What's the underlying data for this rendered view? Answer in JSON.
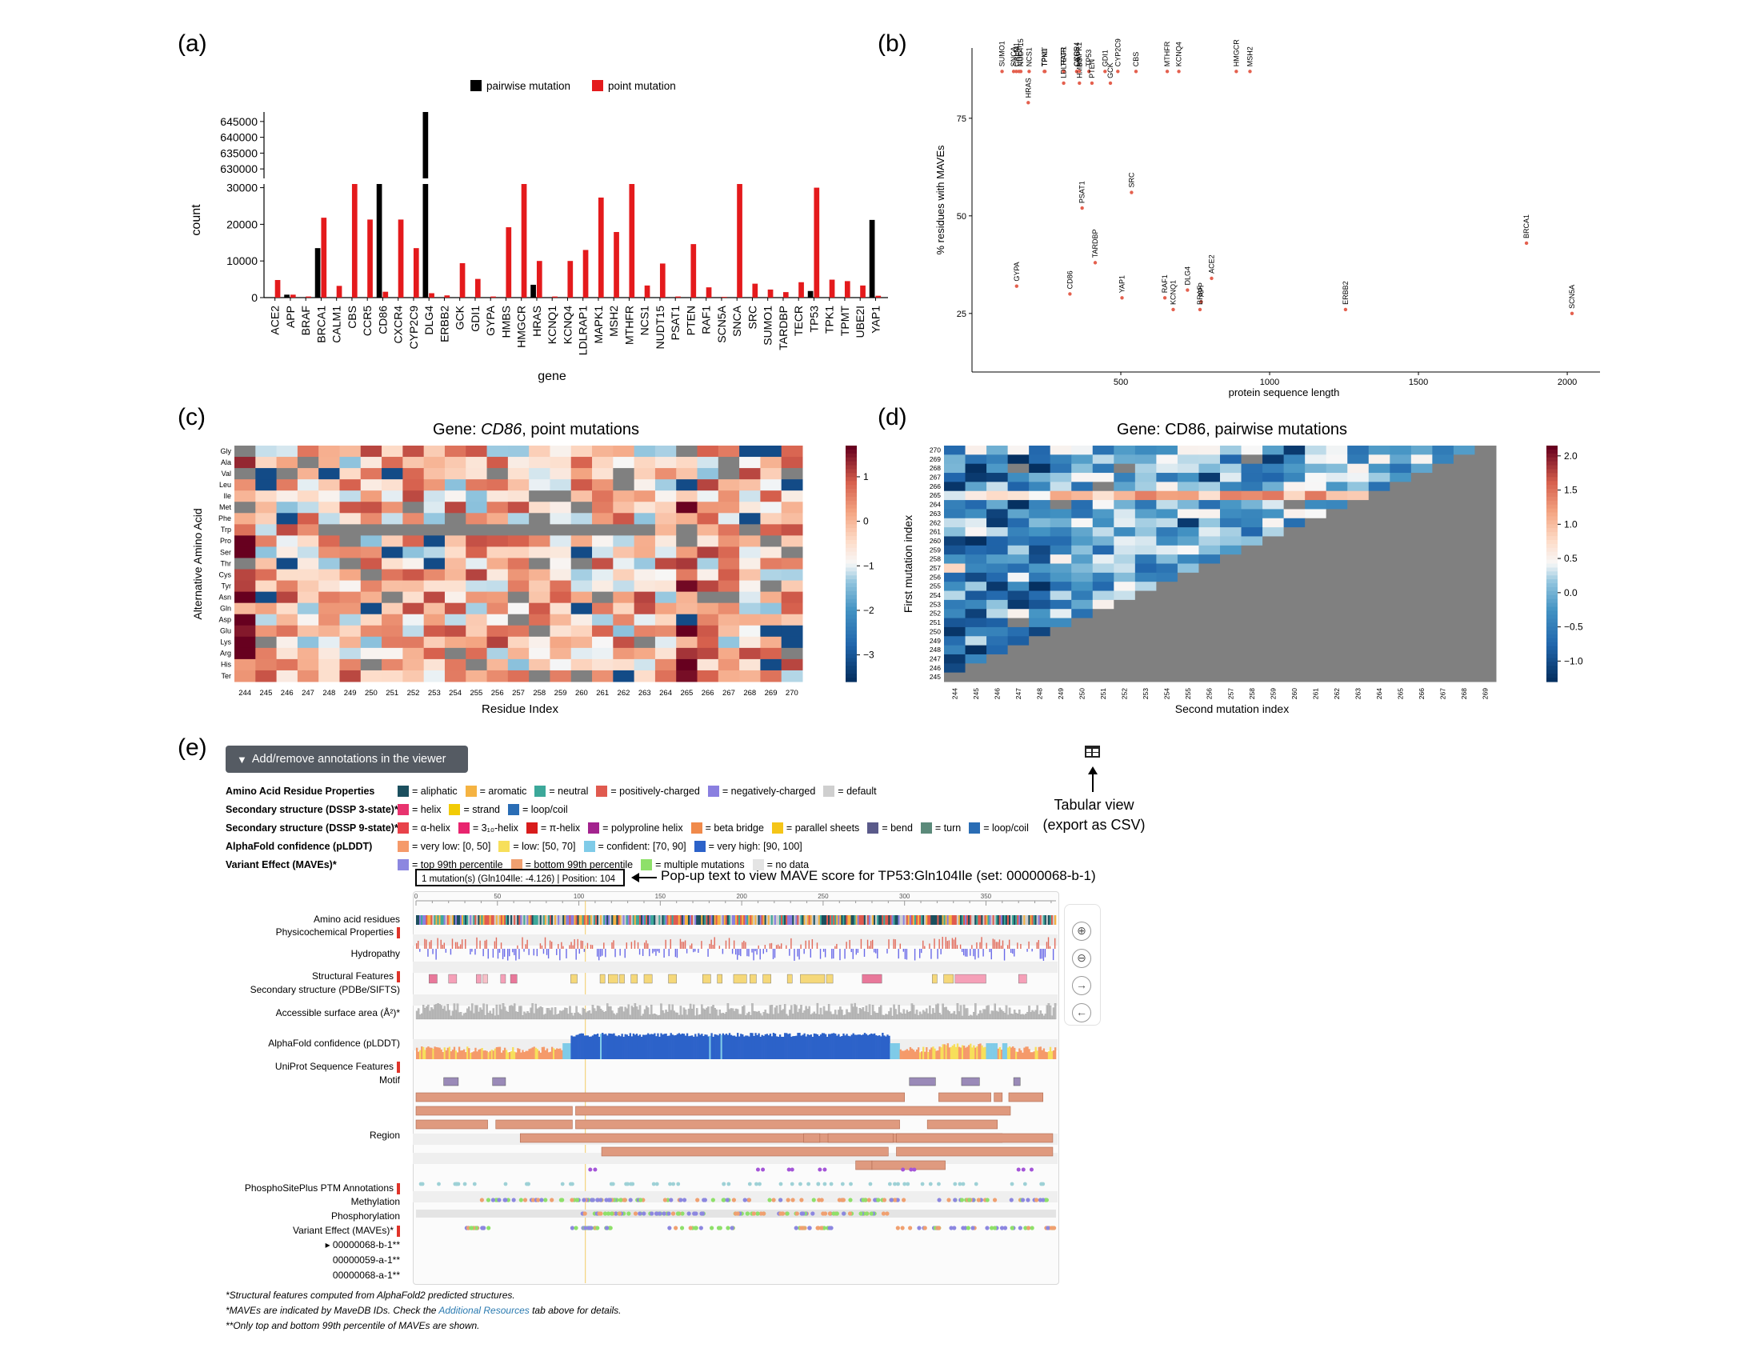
{
  "panels": {
    "a": "(a)",
    "b": "(b)",
    "c": "(c)",
    "d": "(d)",
    "e": "(e)"
  },
  "colors": {
    "pairwise": "#000000",
    "point": "#e41a1c",
    "scatter": "#e4604e",
    "grey": "#808080"
  },
  "chart_data": [
    {
      "id": "a",
      "type": "bar",
      "xlabel": "gene",
      "ylabel": "count",
      "legend": [
        "pairwise mutation",
        "point mutation"
      ],
      "legend_position": "top",
      "categories": [
        "ACE2",
        "APP",
        "BRAF",
        "BRCA1",
        "CALM1",
        "CBS",
        "CCR5",
        "CD86",
        "CXCR4",
        "CYP2C9",
        "DLG4",
        "ERBB2",
        "GCK",
        "GDI1",
        "GYPA",
        "HMBS",
        "HMGCR",
        "HRAS",
        "KCNQ1",
        "KCNQ4",
        "LDLRAP1",
        "MAPK1",
        "MSH2",
        "MTHFR",
        "NCS1",
        "NUDT15",
        "PSAT1",
        "PTEN",
        "RAF1",
        "SCN5A",
        "SNCA",
        "SRC",
        "SUMO1",
        "TARDBP",
        "TECR",
        "TP53",
        "TPK1",
        "TPMT",
        "UBE2I",
        "YAP1"
      ],
      "series": [
        {
          "name": "pairwise mutation",
          "values": [
            0,
            800,
            0,
            13500,
            0,
            0,
            0,
            31000,
            0,
            0,
            648000,
            0,
            0,
            0,
            0,
            0,
            0,
            3500,
            0,
            0,
            0,
            0,
            0,
            0,
            0,
            0,
            0,
            0,
            0,
            0,
            0,
            0,
            0,
            0,
            0,
            1800,
            0,
            0,
            0,
            21200
          ]
        },
        {
          "name": "point mutation",
          "values": [
            4800,
            800,
            300,
            21800,
            3200,
            31000,
            21300,
            1600,
            21300,
            13500,
            1200,
            600,
            9400,
            5100,
            300,
            19200,
            31000,
            10000,
            300,
            10000,
            13000,
            27300,
            17900,
            31000,
            3300,
            9300,
            300,
            14600,
            2800,
            200,
            31000,
            3800,
            2200,
            1500,
            4200,
            30000,
            4900,
            4500,
            3300,
            500
          ]
        }
      ],
      "yticks_lower": [
        "0",
        "10000",
        "20000",
        "30000"
      ],
      "yticks_upper": [
        "630000",
        "635000",
        "640000",
        "645000"
      ]
    },
    {
      "id": "b",
      "type": "scatter",
      "xlabel": "protein sequence length",
      "ylabel": "% residues with MAVEs",
      "xticks": [
        "500",
        "1000",
        "1500",
        "2000"
      ],
      "yticks": [
        "25",
        "50",
        "75"
      ],
      "xlim": [
        0,
        2110
      ],
      "ylim": [
        10,
        93
      ],
      "points": [
        {
          "label": "SUMO1",
          "x": 101,
          "y": 87
        },
        {
          "label": "SNCA",
          "x": 140,
          "y": 87
        },
        {
          "label": "CALM1",
          "x": 149,
          "y": 87
        },
        {
          "label": "UBE2I",
          "x": 158,
          "y": 87
        },
        {
          "label": "NUDT15",
          "x": 164,
          "y": 87
        },
        {
          "label": "HRAS",
          "x": 189,
          "y": 79
        },
        {
          "label": "NCS1",
          "x": 192,
          "y": 87
        },
        {
          "label": "TPK1",
          "x": 243,
          "y": 87
        },
        {
          "label": "TPMT",
          "x": 245,
          "y": 87
        },
        {
          "label": "TECR",
          "x": 308,
          "y": 87
        },
        {
          "label": "LDLRAP1",
          "x": 308,
          "y": 84
        },
        {
          "label": "CXCR4",
          "x": 352,
          "y": 87
        },
        {
          "label": "CCR5",
          "x": 352,
          "y": 87
        },
        {
          "label": "HMBS",
          "x": 361,
          "y": 84
        },
        {
          "label": "MAPK1",
          "x": 360,
          "y": 87
        },
        {
          "label": "TP53",
          "x": 393,
          "y": 87
        },
        {
          "label": "PTEN",
          "x": 403,
          "y": 84
        },
        {
          "label": "GDI1",
          "x": 447,
          "y": 87
        },
        {
          "label": "GCK",
          "x": 465,
          "y": 84
        },
        {
          "label": "CYP2C9",
          "x": 490,
          "y": 87
        },
        {
          "label": "CBS",
          "x": 551,
          "y": 87
        },
        {
          "label": "MTHFR",
          "x": 656,
          "y": 87
        },
        {
          "label": "KCNQ4",
          "x": 695,
          "y": 87
        },
        {
          "label": "HMGCR",
          "x": 888,
          "y": 87
        },
        {
          "label": "MSH2",
          "x": 934,
          "y": 87
        },
        {
          "label": "PSAT1",
          "x": 370,
          "y": 52
        },
        {
          "label": "SRC",
          "x": 536,
          "y": 56
        },
        {
          "label": "TARDBP",
          "x": 414,
          "y": 38
        },
        {
          "label": "GYPA",
          "x": 150,
          "y": 32
        },
        {
          "label": "CD86",
          "x": 329,
          "y": 30
        },
        {
          "label": "YAP1",
          "x": 504,
          "y": 29
        },
        {
          "label": "RAF1",
          "x": 648,
          "y": 29
        },
        {
          "label": "KCNQ1",
          "x": 676,
          "y": 26
        },
        {
          "label": "DLG4",
          "x": 724,
          "y": 31
        },
        {
          "label": "APP",
          "x": 770,
          "y": 28
        },
        {
          "label": "BRAF",
          "x": 766,
          "y": 26
        },
        {
          "label": "ACE2",
          "x": 805,
          "y": 34
        },
        {
          "label": "ERBB2",
          "x": 1255,
          "y": 26
        },
        {
          "label": "BRCA1",
          "x": 1863,
          "y": 43
        },
        {
          "label": "SCN5A",
          "x": 2016,
          "y": 25
        }
      ]
    },
    {
      "id": "c",
      "type": "heatmap",
      "title_prefix": "Gene: ",
      "title_gene": "CD86",
      "title_suffix": ", point mutations",
      "xlabel": "Residue Index",
      "ylabel": "Alternative Amino Acid",
      "x": [
        "244",
        "245",
        "246",
        "247",
        "248",
        "249",
        "250",
        "251",
        "252",
        "253",
        "254",
        "255",
        "256",
        "257",
        "258",
        "259",
        "260",
        "261",
        "262",
        "263",
        "264",
        "265",
        "266",
        "267",
        "268",
        "269",
        "270"
      ],
      "y": [
        "Gly",
        "Ala",
        "Val",
        "Leu",
        "Ile",
        "Met",
        "Phe",
        "Trp",
        "Pro",
        "Ser",
        "Thr",
        "Cys",
        "Tyr",
        "Asn",
        "Gln",
        "Asp",
        "Glu",
        "Lys",
        "Arg",
        "His",
        "Ter"
      ],
      "colorbar_ticks": [
        "1",
        "0",
        "−1",
        "−2",
        "−3"
      ],
      "vmin": -3.6,
      "vmax": 1.7
    },
    {
      "id": "d",
      "type": "heatmap",
      "title": "Gene: CD86, pairwise mutations",
      "xlabel": "Second mutation index",
      "ylabel": "First mutation index",
      "x": [
        "244",
        "245",
        "246",
        "247",
        "248",
        "249",
        "250",
        "251",
        "252",
        "253",
        "254",
        "255",
        "256",
        "257",
        "258",
        "259",
        "260",
        "261",
        "262",
        "263",
        "264",
        "265",
        "266",
        "267",
        "268",
        "269"
      ],
      "y": [
        "270",
        "269",
        "268",
        "267",
        "266",
        "265",
        "264",
        "263",
        "262",
        "261",
        "260",
        "259",
        "258",
        "257",
        "256",
        "255",
        "254",
        "253",
        "252",
        "251",
        "250",
        "249",
        "248",
        "247",
        "246",
        "245"
      ],
      "colorbar_ticks": [
        "2.0",
        "1.5",
        "1.0",
        "0.5",
        "0.0",
        "−0.5",
        "−1.0"
      ],
      "vmin": -1.3,
      "vmax": 2.15
    }
  ],
  "viewer": {
    "button_label": "Add/remove annotations in the viewer",
    "tabular_view": "Tabular view",
    "tabular_export": "(export as CSV)",
    "legend": [
      {
        "title": "Amino Acid Residue Properties",
        "items": [
          {
            "c": "#1b4f5e",
            "t": "= aliphatic"
          },
          {
            "c": "#f5b342",
            "t": "= aromatic"
          },
          {
            "c": "#3ca89a",
            "t": "= neutral"
          },
          {
            "c": "#e05a4f",
            "t": "= positively-charged"
          },
          {
            "c": "#8a7fe0",
            "t": "= negatively-charged"
          },
          {
            "c": "#cfcfcf",
            "t": "= default"
          }
        ]
      },
      {
        "title": "Secondary structure (DSSP 3-state)*",
        "items": [
          {
            "c": "#e8336e",
            "t": "= helix"
          },
          {
            "c": "#f2cb05",
            "t": "= strand"
          },
          {
            "c": "#2a6db5",
            "t": "= loop/coil"
          }
        ]
      },
      {
        "title": "Secondary structure (DSSP 9-state)*",
        "items": [
          {
            "c": "#e8424a",
            "t": "= α-helix"
          },
          {
            "c": "#e8246e",
            "t": "= 3₁₀-helix"
          },
          {
            "c": "#d81b1b",
            "t": "= π-helix"
          },
          {
            "c": "#a3238e",
            "t": "= polyproline helix"
          },
          {
            "c": "#f08a4b",
            "t": "= beta bridge"
          },
          {
            "c": "#f5c518",
            "t": "= parallel sheets"
          },
          {
            "c": "#5a5a8a",
            "t": "= bend"
          },
          {
            "c": "#5b8a7a",
            "t": "= turn"
          },
          {
            "c": "#2a6db5",
            "t": "= loop/coil"
          }
        ]
      },
      {
        "title": "AlphaFold confidence (pLDDT)",
        "items": [
          {
            "c": "#f59a6a",
            "t": "= very low: [0, 50]"
          },
          {
            "c": "#f7df5a",
            "t": "= low: [50, 70]"
          },
          {
            "c": "#7fcbe8",
            "t": "= confident: [70, 90]"
          },
          {
            "c": "#2c62c9",
            "t": "= very high: [90, 100]"
          }
        ]
      },
      {
        "title": "Variant Effect (MAVEs)*",
        "items": [
          {
            "c": "#8c87e0",
            "t": "= top 99th percentile"
          },
          {
            "c": "#f0a070",
            "t": "= bottom 99th percentile"
          },
          {
            "c": "#8ee06a",
            "t": "= multiple mutations"
          },
          {
            "c": "#e4e4e4",
            "t": "= no data"
          }
        ]
      }
    ],
    "popup": "1 mutation(s) (Gln104Ile: -4.126) | Position: 104",
    "popup_note": "Pop-up text to view MAVE score for TP53:Gln104Ile (set: 00000068-b-1)",
    "ruler_ticks": [
      "0",
      "50",
      "100",
      "150",
      "200",
      "250",
      "300",
      "350"
    ],
    "ruler_max": 393,
    "tracks": {
      "aa": "Amino acid residues",
      "physico": "Physicochemical Properties",
      "hydro": "Hydropathy",
      "struct": "Structural Features",
      "ss": "Secondary structure (PDBe/SIFTS)",
      "asa": "Accessible surface area (Å²)*",
      "af": "AlphaFold confidence (pLDDT)",
      "uniprot": "UniProt Sequence Features",
      "motif": "Motif",
      "region": "Region",
      "ptm": "PhosphoSitePlus PTM Annotations",
      "methyl": "Methylation",
      "phospho": "Phosphorylation",
      "ve": "Variant Effect (MAVEs)*",
      "m1": "00000068-b-1**",
      "m2": "00000059-a-1**",
      "m3": "00000068-a-1**"
    },
    "footnotes": {
      "f1": "*Structural features computed from AlphaFold2 predicted structures.",
      "f2a": "*MAVEs are indicated by MaveDB IDs. Check the ",
      "f2link": "Additional Resources",
      "f2b": " tab above for details.",
      "f3": "**Only top and bottom 99th percentile of MAVEs are shown."
    }
  }
}
